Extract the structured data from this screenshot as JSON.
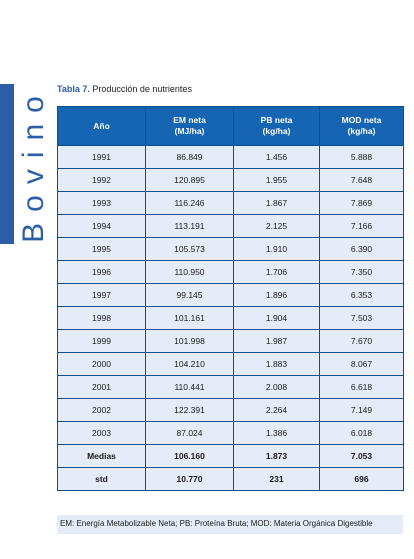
{
  "side_label": "Bovino",
  "caption": {
    "number": "Tabla 7.",
    "title": "Producción de nutrientes"
  },
  "table": {
    "headers": [
      "Año",
      "EM neta\n(MJ/ha)",
      "PB neta\n(kg/ha)",
      "MOD neta\n(kg/ha)"
    ],
    "rows": [
      [
        "1991",
        "86.849",
        "1.456",
        "5.888"
      ],
      [
        "1992",
        "120.895",
        "1.955",
        "7.648"
      ],
      [
        "1993",
        "116.246",
        "1.867",
        "7.869"
      ],
      [
        "1994",
        "113.191",
        "2.125",
        "7.166"
      ],
      [
        "1995",
        "105.573",
        "1.910",
        "6.390"
      ],
      [
        "1996",
        "110.950",
        "1.706",
        "7.350"
      ],
      [
        "1997",
        "99.145",
        "1.896",
        "6.353"
      ],
      [
        "1998",
        "101.161",
        "1.904",
        "7.503"
      ],
      [
        "1999",
        "101.998",
        "1.987",
        "7.670"
      ],
      [
        "2000",
        "104.210",
        "1.883",
        "8.067"
      ],
      [
        "2001",
        "110.441",
        "2.008",
        "6.618"
      ],
      [
        "2002",
        "122.391",
        "2.264",
        "7.149"
      ],
      [
        "2003",
        "87.024",
        "1.386",
        "6.018"
      ]
    ],
    "summary_rows": [
      [
        "Medias",
        "106.160",
        "1.873",
        "7.053"
      ],
      [
        "std",
        "10.770",
        "231",
        "696"
      ]
    ]
  },
  "footnote": "EM: Energía Metabolizable Neta; PB: Proteína Bruta; MOD: Materia Orgánica Digestible",
  "colors": {
    "accent": "#2b5ea6",
    "header_bg": "#1565b2",
    "cell_bg": "#e4edf7"
  }
}
